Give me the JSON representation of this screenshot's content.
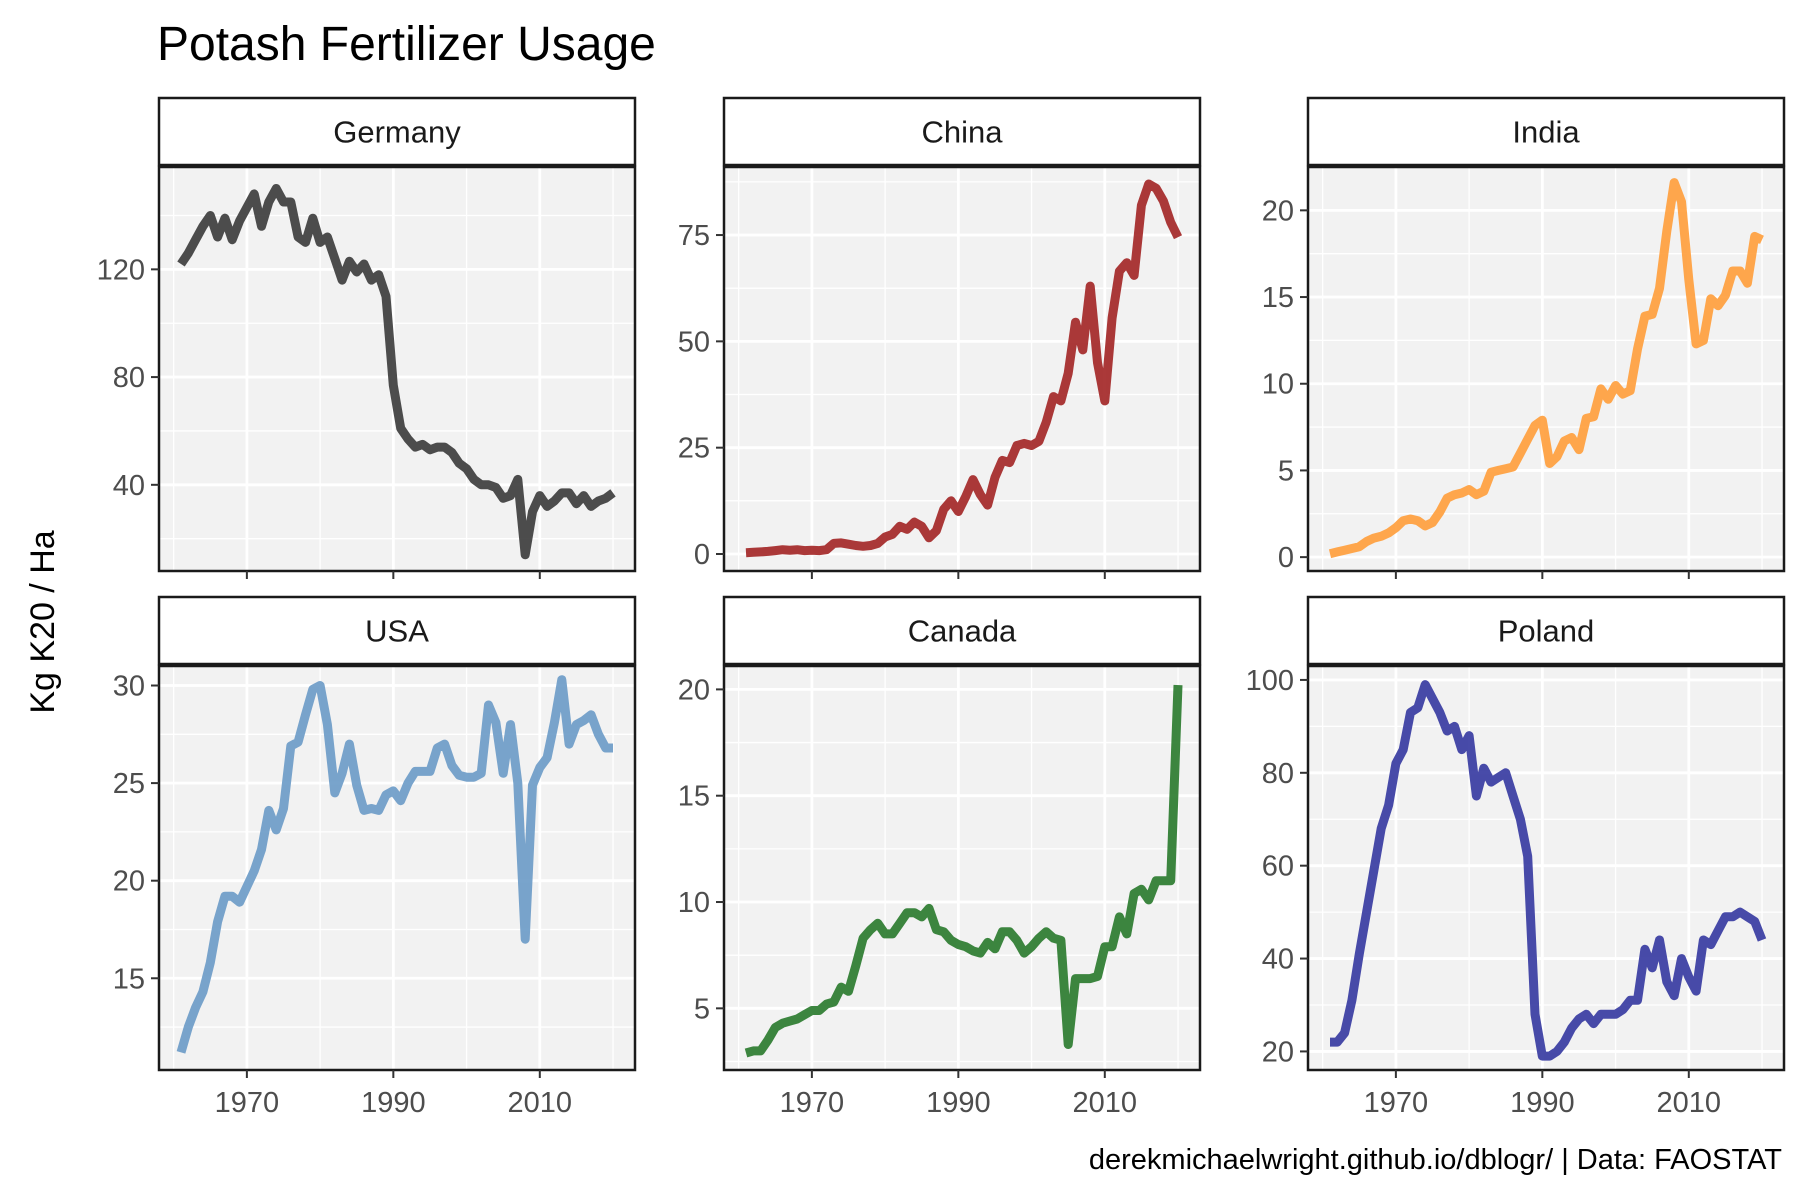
{
  "chart_data": {
    "type": "line",
    "title": "Potash Fertilizer Usage",
    "ylabel": "Kg K20 / Ha",
    "xlabel": "",
    "caption": "derekmichaelwright.github.io/dblogr/ | Data: FAOSTAT",
    "xlim": [
      1958,
      2023
    ],
    "x_ticks": [
      1970,
      1990,
      2010
    ],
    "x_tick_labels": [
      "1970",
      "1990",
      "2010"
    ],
    "grid": true,
    "facets": [
      {
        "name": "Germany",
        "color": "#404040",
        "ylim": [
          8,
          158
        ],
        "y_ticks": [
          40,
          80,
          120
        ],
        "y_tick_labels": [
          "40",
          "80",
          "120"
        ],
        "x": [
          1961,
          1962,
          1963,
          1964,
          1965,
          1966,
          1967,
          1968,
          1969,
          1970,
          1971,
          1972,
          1973,
          1974,
          1975,
          1976,
          1977,
          1978,
          1979,
          1980,
          1981,
          1982,
          1983,
          1984,
          1985,
          1986,
          1987,
          1988,
          1989,
          1990,
          1991,
          1992,
          1993,
          1994,
          1995,
          1996,
          1997,
          1998,
          1999,
          2000,
          2001,
          2002,
          2003,
          2004,
          2005,
          2006,
          2007,
          2008,
          2009,
          2010,
          2011,
          2012,
          2013,
          2014,
          2015,
          2016,
          2017,
          2018,
          2019,
          2020
        ],
        "values": [
          122,
          126,
          131,
          136,
          140,
          132,
          139,
          131,
          138,
          143,
          148,
          136,
          145,
          150,
          145,
          145,
          132,
          130,
          139,
          130,
          132,
          124,
          116,
          123,
          119,
          122,
          116,
          118,
          110,
          77,
          61,
          57,
          54,
          55,
          53,
          54,
          54,
          52,
          48,
          46,
          42,
          40,
          40,
          39,
          35,
          36,
          42,
          14,
          30,
          36,
          32,
          34,
          37,
          37,
          33,
          36,
          32,
          34,
          35,
          37
        ]
      },
      {
        "name": "China",
        "color": "#A52A2A",
        "ylim": [
          -4,
          91
        ],
        "y_ticks": [
          0,
          25,
          50,
          75
        ],
        "y_tick_labels": [
          "0",
          "25",
          "50",
          "75"
        ],
        "x": [
          1961,
          1962,
          1963,
          1964,
          1965,
          1966,
          1967,
          1968,
          1969,
          1970,
          1971,
          1972,
          1973,
          1974,
          1975,
          1976,
          1977,
          1978,
          1979,
          1980,
          1981,
          1982,
          1983,
          1984,
          1985,
          1986,
          1987,
          1988,
          1989,
          1990,
          1991,
          1992,
          1993,
          1994,
          1995,
          1996,
          1997,
          1998,
          1999,
          2000,
          2001,
          2002,
          2003,
          2004,
          2005,
          2006,
          2007,
          2008,
          2009,
          2010,
          2011,
          2012,
          2013,
          2014,
          2015,
          2016,
          2017,
          2018,
          2019,
          2020
        ],
        "values": [
          0.3,
          0.4,
          0.5,
          0.6,
          0.8,
          1.0,
          0.9,
          1.0,
          0.8,
          0.9,
          0.8,
          1.0,
          2.5,
          2.6,
          2.3,
          2.0,
          1.8,
          2.0,
          2.5,
          4.0,
          4.6,
          6.5,
          5.8,
          7.5,
          6.5,
          3.8,
          5.5,
          10.5,
          12.5,
          10.0,
          13.5,
          17.5,
          14.0,
          11.5,
          18.0,
          22.0,
          21.5,
          25.5,
          26.0,
          25.5,
          26.5,
          31.0,
          37.0,
          36.0,
          42.5,
          54.5,
          48.0,
          63.0,
          45.0,
          36.0,
          55.5,
          66.5,
          68.5,
          65.5,
          82.0,
          87.0,
          86.0,
          83.0,
          78.0,
          74.5
        ]
      },
      {
        "name": "India",
        "color": "#FFA040",
        "ylim": [
          -0.8,
          22.5
        ],
        "y_ticks": [
          0,
          5,
          10,
          15,
          20
        ],
        "y_tick_labels": [
          "0",
          "5",
          "10",
          "15",
          "20"
        ],
        "x": [
          1961,
          1962,
          1963,
          1964,
          1965,
          1966,
          1967,
          1968,
          1969,
          1970,
          1971,
          1972,
          1973,
          1974,
          1975,
          1976,
          1977,
          1978,
          1979,
          1980,
          1981,
          1982,
          1983,
          1984,
          1985,
          1986,
          1987,
          1988,
          1989,
          1990,
          1991,
          1992,
          1993,
          1994,
          1995,
          1996,
          1997,
          1998,
          1999,
          2000,
          2001,
          2002,
          2003,
          2004,
          2005,
          2006,
          2007,
          2008,
          2009,
          2010,
          2011,
          2012,
          2013,
          2014,
          2015,
          2016,
          2017,
          2018,
          2019,
          2020
        ],
        "values": [
          0.2,
          0.3,
          0.4,
          0.5,
          0.6,
          0.9,
          1.1,
          1.2,
          1.4,
          1.7,
          2.1,
          2.2,
          2.1,
          1.8,
          2.0,
          2.6,
          3.4,
          3.6,
          3.7,
          3.9,
          3.6,
          3.8,
          4.9,
          5.0,
          5.1,
          5.2,
          6.0,
          6.8,
          7.6,
          7.9,
          5.4,
          5.8,
          6.7,
          6.9,
          6.2,
          8.0,
          8.1,
          9.7,
          9.1,
          9.9,
          9.4,
          9.6,
          12.0,
          13.9,
          14.0,
          15.5,
          18.8,
          21.6,
          20.5,
          16.0,
          12.3,
          12.5,
          14.9,
          14.5,
          15.1,
          16.5,
          16.5,
          15.8,
          18.5,
          18.3
        ]
      },
      {
        "name": "USA",
        "color": "#6F9DC8",
        "ylim": [
          10.3,
          31.0
        ],
        "y_ticks": [
          15,
          20,
          25,
          30
        ],
        "y_tick_labels": [
          "15",
          "20",
          "25",
          "30"
        ],
        "x": [
          1961,
          1962,
          1963,
          1964,
          1965,
          1966,
          1967,
          1968,
          1969,
          1970,
          1971,
          1972,
          1973,
          1974,
          1975,
          1976,
          1977,
          1978,
          1979,
          1980,
          1981,
          1982,
          1983,
          1984,
          1985,
          1986,
          1987,
          1988,
          1989,
          1990,
          1991,
          1992,
          1993,
          1994,
          1995,
          1996,
          1997,
          1998,
          1999,
          2000,
          2001,
          2002,
          2003,
          2004,
          2005,
          2006,
          2007,
          2008,
          2009,
          2010,
          2011,
          2012,
          2013,
          2014,
          2015,
          2016,
          2017,
          2018,
          2019,
          2020
        ],
        "values": [
          11.2,
          12.5,
          13.5,
          14.3,
          15.8,
          17.9,
          19.2,
          19.2,
          18.9,
          19.7,
          20.5,
          21.6,
          23.6,
          22.6,
          23.7,
          26.9,
          27.1,
          28.5,
          29.8,
          30.0,
          28.0,
          24.5,
          25.5,
          27.0,
          24.9,
          23.6,
          23.7,
          23.6,
          24.4,
          24.6,
          24.1,
          25.0,
          25.6,
          25.6,
          25.6,
          26.8,
          27.0,
          25.9,
          25.4,
          25.3,
          25.3,
          25.5,
          29.0,
          28.1,
          25.5,
          28.0,
          25.0,
          17.0,
          24.9,
          25.8,
          26.3,
          28.1,
          30.3,
          27.0,
          28.0,
          28.2,
          28.5,
          27.5,
          26.8,
          26.8
        ]
      },
      {
        "name": "Canada",
        "color": "#2E7D32",
        "ylim": [
          2.1,
          21.1
        ],
        "y_ticks": [
          5,
          10,
          15,
          20
        ],
        "y_tick_labels": [
          "5",
          "10",
          "15",
          "20"
        ],
        "x": [
          1961,
          1962,
          1963,
          1964,
          1965,
          1966,
          1967,
          1968,
          1969,
          1970,
          1971,
          1972,
          1973,
          1974,
          1975,
          1976,
          1977,
          1978,
          1979,
          1980,
          1981,
          1982,
          1983,
          1984,
          1985,
          1986,
          1987,
          1988,
          1989,
          1990,
          1991,
          1992,
          1993,
          1994,
          1995,
          1996,
          1997,
          1998,
          1999,
          2000,
          2001,
          2002,
          2003,
          2004,
          2005,
          2006,
          2007,
          2008,
          2009,
          2010,
          2011,
          2012,
          2013,
          2014,
          2015,
          2016,
          2017,
          2018,
          2019,
          2020
        ],
        "values": [
          2.9,
          3.0,
          3.0,
          3.5,
          4.1,
          4.3,
          4.4,
          4.5,
          4.7,
          4.9,
          4.9,
          5.2,
          5.3,
          6.0,
          5.8,
          7.0,
          8.3,
          8.7,
          9.0,
          8.5,
          8.5,
          9.0,
          9.5,
          9.5,
          9.3,
          9.7,
          8.7,
          8.6,
          8.2,
          8.0,
          7.9,
          7.7,
          7.6,
          8.1,
          7.8,
          8.6,
          8.6,
          8.2,
          7.6,
          7.9,
          8.3,
          8.6,
          8.3,
          8.2,
          3.3,
          6.4,
          6.4,
          6.4,
          6.5,
          7.9,
          7.9,
          9.3,
          8.5,
          10.4,
          10.6,
          10.1,
          11.0,
          11.0,
          11.0,
          20.2
        ]
      },
      {
        "name": "Poland",
        "color": "#3A3DA3",
        "ylim": [
          16,
          103
        ],
        "y_ticks": [
          20,
          40,
          60,
          80,
          100
        ],
        "y_tick_labels": [
          "20",
          "40",
          "60",
          "80",
          "100"
        ],
        "x": [
          1961,
          1962,
          1963,
          1964,
          1965,
          1966,
          1967,
          1968,
          1969,
          1970,
          1971,
          1972,
          1973,
          1974,
          1975,
          1976,
          1977,
          1978,
          1979,
          1980,
          1981,
          1982,
          1983,
          1984,
          1985,
          1986,
          1987,
          1988,
          1989,
          1990,
          1991,
          1992,
          1993,
          1994,
          1995,
          1996,
          1997,
          1998,
          1999,
          2000,
          2001,
          2002,
          2003,
          2004,
          2005,
          2006,
          2007,
          2008,
          2009,
          2010,
          2011,
          2012,
          2013,
          2014,
          2015,
          2016,
          2017,
          2018,
          2019,
          2020
        ],
        "values": [
          22,
          22,
          24,
          31,
          41,
          50,
          59,
          68,
          73,
          82,
          85,
          93,
          94,
          99,
          96,
          93,
          89,
          90,
          85,
          88,
          75,
          81,
          78,
          79,
          80,
          75,
          70,
          62,
          28,
          19,
          19,
          20,
          22,
          25,
          27,
          28,
          26,
          28,
          28,
          28,
          29,
          31,
          31,
          42,
          38,
          44,
          35,
          32,
          40,
          36,
          33,
          44,
          43,
          46,
          49,
          49,
          50,
          49,
          48,
          44
        ]
      }
    ]
  }
}
